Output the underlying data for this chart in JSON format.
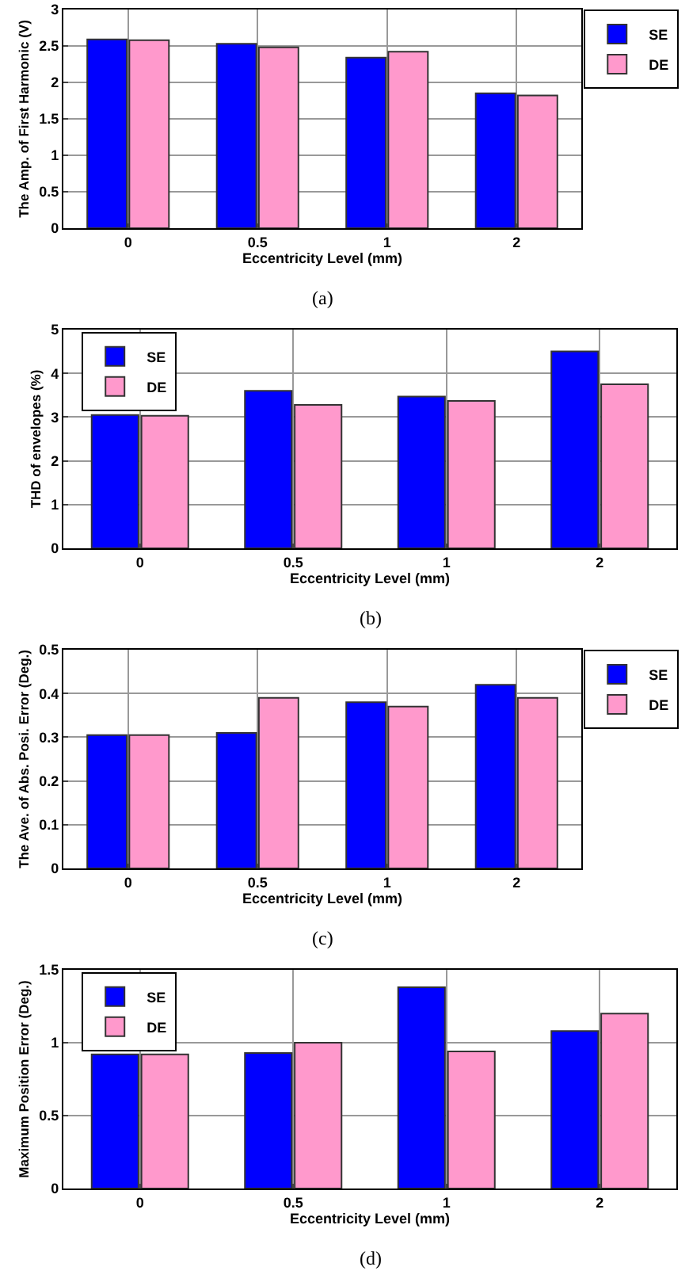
{
  "chart_data": [
    {
      "type": "bar",
      "xlabel": "Eccentricity Level (mm)",
      "ylabel": "The Amp. of First Harmonic (V)",
      "categories": [
        "0",
        "0.5",
        "1",
        "2"
      ],
      "series": [
        {
          "name": "SE",
          "color": "#0000ff",
          "values": [
            2.59,
            2.53,
            2.34,
            1.85
          ]
        },
        {
          "name": "DE",
          "color": "#ff99cc",
          "values": [
            2.58,
            2.48,
            2.42,
            1.82
          ]
        }
      ],
      "ylim": [
        0,
        3
      ],
      "yticks": [
        0,
        0.5,
        1,
        1.5,
        2,
        2.5,
        3
      ],
      "grid": true,
      "legend": "top right",
      "annotations": [
        "(a)"
      ]
    },
    {
      "type": "bar",
      "xlabel": "Eccentricity Level (mm)",
      "ylabel": "THD of envelopes (%)",
      "categories": [
        "0",
        "0.5",
        "1",
        "2"
      ],
      "series": [
        {
          "name": "SE",
          "color": "#0000ff",
          "values": [
            3.05,
            3.6,
            3.47,
            4.5
          ]
        },
        {
          "name": "DE",
          "color": "#ff99cc",
          "values": [
            3.03,
            3.28,
            3.37,
            3.75
          ]
        }
      ],
      "ylim": [
        0,
        5
      ],
      "yticks": [
        0,
        1,
        2,
        3,
        4,
        5
      ],
      "grid": true,
      "legend": "top left",
      "annotations": [
        "(b)"
      ]
    },
    {
      "type": "bar",
      "xlabel": "Eccentricity Level (mm)",
      "ylabel": "The Ave. of Abs. Posi. Error (Deg.)",
      "categories": [
        "0",
        "0.5",
        "1",
        "2"
      ],
      "series": [
        {
          "name": "SE",
          "color": "#0000ff",
          "values": [
            0.305,
            0.31,
            0.38,
            0.42
          ]
        },
        {
          "name": "DE",
          "color": "#ff99cc",
          "values": [
            0.305,
            0.39,
            0.37,
            0.39
          ]
        }
      ],
      "ylim": [
        0,
        0.5
      ],
      "yticks": [
        0,
        0.1,
        0.2,
        0.3,
        0.4,
        0.5
      ],
      "grid": true,
      "legend": "top right",
      "annotations": [
        "(c)"
      ]
    },
    {
      "type": "bar",
      "xlabel": "Eccentricity Level (mm)",
      "ylabel": "Maximum Position Error (Deg.)",
      "categories": [
        "0",
        "0.5",
        "1",
        "2"
      ],
      "series": [
        {
          "name": "SE",
          "color": "#0000ff",
          "values": [
            0.92,
            0.93,
            1.38,
            1.08
          ]
        },
        {
          "name": "DE",
          "color": "#ff99cc",
          "values": [
            0.92,
            1.0,
            0.94,
            1.2
          ]
        }
      ],
      "ylim": [
        0,
        1.5
      ],
      "yticks": [
        0,
        0.5,
        1,
        1.5
      ],
      "grid": true,
      "legend": "top left",
      "annotations": [
        "(d)"
      ]
    }
  ]
}
